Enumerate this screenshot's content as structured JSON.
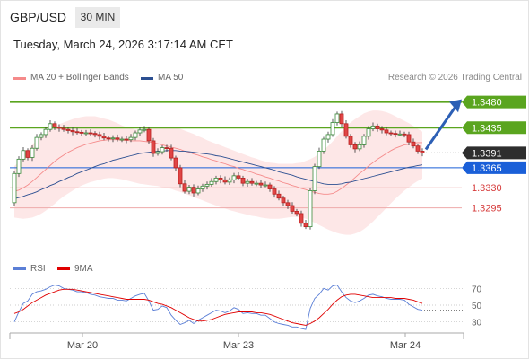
{
  "symbol": "GBP/USD",
  "timeframe": "30 MIN",
  "timestamp": "Tuesday, March 24, 2026 3:17:14 AM CET",
  "legend": {
    "ma20_label": "MA 20 + Bollinger Bands",
    "ma50_label": "MA 50",
    "rsi_label": "RSI",
    "rsi_ma_label": "9MA",
    "colors": {
      "ma20": "#f58a8a",
      "ma50": "#2c4f91",
      "rsi": "#5b7fd6",
      "rsi_ma": "#e00000"
    }
  },
  "credit": "Research © 2026 Trading Central",
  "levels": [
    {
      "value": "1.3480",
      "kind": "resistance",
      "color": "#5aa51f"
    },
    {
      "value": "1.3435",
      "kind": "resistance",
      "color": "#5aa51f"
    },
    {
      "value": "1.3391",
      "kind": "last_price",
      "color": "#2e2e2e"
    },
    {
      "value": "1.3365",
      "kind": "pivot",
      "color": "#1a5fd8"
    },
    {
      "value": "1.3330",
      "kind": "support",
      "color": "#d63b3b"
    },
    {
      "value": "1.3295",
      "kind": "support",
      "color": "#d63b3b"
    }
  ],
  "rsi_ticks": [
    "70",
    "50",
    "30"
  ],
  "date_ticks": [
    "Mar 20",
    "Mar 23",
    "Mar 24"
  ],
  "chart_data": {
    "type": "candlestick",
    "price_range": [
      1.3252,
      1.3495
    ],
    "rsi_range": [
      20,
      80
    ],
    "candles": [
      [
        1.3304,
        1.3355
      ],
      [
        1.3355,
        1.338
      ],
      [
        1.338,
        1.3395
      ],
      [
        1.3395,
        1.3383
      ],
      [
        1.3383,
        1.3399
      ],
      [
        1.3399,
        1.3418
      ],
      [
        1.3418,
        1.3423
      ],
      [
        1.3423,
        1.3432
      ],
      [
        1.3432,
        1.3442
      ],
      [
        1.3442,
        1.3436
      ],
      [
        1.3436,
        1.3434
      ],
      [
        1.3434,
        1.3432
      ],
      [
        1.3432,
        1.343
      ],
      [
        1.343,
        1.3428
      ],
      [
        1.3428,
        1.3427
      ],
      [
        1.3427,
        1.3426
      ],
      [
        1.3426,
        1.3426
      ],
      [
        1.3426,
        1.3425
      ],
      [
        1.3425,
        1.3423
      ],
      [
        1.3423,
        1.342
      ],
      [
        1.342,
        1.3417
      ],
      [
        1.3417,
        1.3416
      ],
      [
        1.3416,
        1.3417
      ],
      [
        1.3417,
        1.3415
      ],
      [
        1.3415,
        1.3415
      ],
      [
        1.3415,
        1.3414
      ],
      [
        1.3414,
        1.3418
      ],
      [
        1.3418,
        1.3426
      ],
      [
        1.3426,
        1.3431
      ],
      [
        1.3431,
        1.3432
      ],
      [
        1.3432,
        1.3412
      ],
      [
        1.3412,
        1.339
      ],
      [
        1.339,
        1.3393
      ],
      [
        1.3393,
        1.34
      ],
      [
        1.34,
        1.3399
      ],
      [
        1.3399,
        1.3382
      ],
      [
        1.3382,
        1.3365
      ],
      [
        1.3365,
        1.3337
      ],
      [
        1.3337,
        1.3324
      ],
      [
        1.3324,
        1.3331
      ],
      [
        1.3331,
        1.3321
      ],
      [
        1.3321,
        1.3328
      ],
      [
        1.3328,
        1.3333
      ],
      [
        1.3333,
        1.3336
      ],
      [
        1.3336,
        1.3341
      ],
      [
        1.3341,
        1.3347
      ],
      [
        1.3347,
        1.3344
      ],
      [
        1.3344,
        1.334
      ],
      [
        1.334,
        1.3344
      ],
      [
        1.3344,
        1.3351
      ],
      [
        1.3351,
        1.3347
      ],
      [
        1.3347,
        1.3338
      ],
      [
        1.3338,
        1.3341
      ],
      [
        1.3341,
        1.3338
      ],
      [
        1.3338,
        1.3338
      ],
      [
        1.3338,
        1.3335
      ],
      [
        1.3335,
        1.3335
      ],
      [
        1.3335,
        1.3328
      ],
      [
        1.3328,
        1.3319
      ],
      [
        1.3319,
        1.3312
      ],
      [
        1.3312,
        1.3304
      ],
      [
        1.3304,
        1.3299
      ],
      [
        1.3299,
        1.3289
      ],
      [
        1.3289,
        1.3285
      ],
      [
        1.3285,
        1.3268
      ],
      [
        1.3268,
        1.3262
      ],
      [
        1.3262,
        1.3325
      ],
      [
        1.3325,
        1.3367
      ],
      [
        1.3367,
        1.3394
      ],
      [
        1.3394,
        1.3415
      ],
      [
        1.3415,
        1.3423
      ],
      [
        1.3423,
        1.3444
      ],
      [
        1.3444,
        1.3459
      ],
      [
        1.3459,
        1.3442
      ],
      [
        1.3442,
        1.342
      ],
      [
        1.342,
        1.3405
      ],
      [
        1.3405,
        1.3398
      ],
      [
        1.3398,
        1.3405
      ],
      [
        1.3405,
        1.342
      ],
      [
        1.342,
        1.3433
      ],
      [
        1.3433,
        1.3438
      ],
      [
        1.3438,
        1.3433
      ],
      [
        1.3433,
        1.3431
      ],
      [
        1.3431,
        1.3426
      ],
      [
        1.3426,
        1.3425
      ],
      [
        1.3425,
        1.3424
      ],
      [
        1.3424,
        1.3424
      ],
      [
        1.3424,
        1.3423
      ],
      [
        1.3423,
        1.341
      ],
      [
        1.341,
        1.3403
      ],
      [
        1.3403,
        1.3394
      ],
      [
        1.3394,
        1.3391
      ]
    ],
    "ma20": [
      1.3324,
      1.3326,
      1.333,
      1.3335,
      1.3341,
      1.3348,
      1.3355,
      1.3362,
      1.3369,
      1.3376,
      1.3382,
      1.3387,
      1.3392,
      1.3396,
      1.34,
      1.3403,
      1.3406,
      1.3408,
      1.341,
      1.3412,
      1.3413,
      1.3414,
      1.3414,
      1.3414,
      1.3413,
      1.3413,
      1.3412,
      1.3412,
      1.3412,
      1.3411,
      1.341,
      1.3409,
      1.3407,
      1.3405,
      1.3403,
      1.3401,
      1.3399,
      1.3397,
      1.3394,
      1.3392,
      1.3389,
      1.3387,
      1.3384,
      1.3382,
      1.3379,
      1.3377,
      1.3374,
      1.3372,
      1.3369,
      1.3367,
      1.3364,
      1.3362,
      1.3359,
      1.3357,
      1.3354,
      1.3352,
      1.3349,
      1.3347,
      1.3344,
      1.3342,
      1.3339,
      1.3337,
      1.3334,
      1.3332,
      1.3329,
      1.3327,
      1.3324,
      1.3322,
      1.332,
      1.3319,
      1.3319,
      1.332,
      1.3324,
      1.3329,
      1.3335,
      1.3341,
      1.3348,
      1.3355,
      1.3361,
      1.3368,
      1.3374,
      1.338,
      1.3385,
      1.339,
      1.3395,
      1.3399,
      1.3402,
      1.3405,
      1.3406,
      1.3408,
      1.3409,
      1.3409
    ],
    "ma50": [
      1.3311,
      1.3313,
      1.3315,
      1.3318,
      1.332,
      1.3323,
      1.3327,
      1.333,
      1.3334,
      1.3337,
      1.3341,
      1.3344,
      1.3348,
      1.3351,
      1.3355,
      1.3358,
      1.3361,
      1.3364,
      1.3367,
      1.337,
      1.3372,
      1.3375,
      1.3378,
      1.338,
      1.3382,
      1.3384,
      1.3386,
      1.3388,
      1.339,
      1.3391,
      1.3392,
      1.3393,
      1.3394,
      1.3394,
      1.3395,
      1.3395,
      1.3395,
      1.3394,
      1.3394,
      1.3393,
      1.3392,
      1.3391,
      1.339,
      1.3389,
      1.3388,
      1.3386,
      1.3385,
      1.3383,
      1.3381,
      1.3379,
      1.3377,
      1.3375,
      1.3373,
      1.3371,
      1.3369,
      1.3367,
      1.3365,
      1.3363,
      1.3361,
      1.3358,
      1.3356,
      1.3354,
      1.3352,
      1.3349,
      1.3347,
      1.3345,
      1.3343,
      1.3341,
      1.3339,
      1.3337,
      1.3336,
      1.3336,
      1.3336,
      1.3337,
      1.3339,
      1.334,
      1.3342,
      1.3344,
      1.3346,
      1.3348,
      1.335,
      1.3352,
      1.3354,
      1.3356,
      1.3358,
      1.336,
      1.3362,
      1.3364,
      1.3366,
      1.3367,
      1.3369,
      1.337
    ],
    "bb_upper": [
      1.3368,
      1.3375,
      1.3385,
      1.3395,
      1.3405,
      1.3413,
      1.342,
      1.3426,
      1.3431,
      1.3436,
      1.3441,
      1.3444,
      1.3447,
      1.345,
      1.3452,
      1.3454,
      1.3455,
      1.3455,
      1.3455,
      1.3453,
      1.3451,
      1.3449,
      1.3446,
      1.3443,
      1.3439,
      1.3436,
      1.3434,
      1.3432,
      1.3432,
      1.3433,
      1.3434,
      1.3436,
      1.3437,
      1.3437,
      1.3437,
      1.3436,
      1.3435,
      1.3433,
      1.343,
      1.3427,
      1.3424,
      1.342,
      1.3417,
      1.3413,
      1.341,
      1.3407,
      1.3404,
      1.3401,
      1.3398,
      1.3395,
      1.3392,
      1.3389,
      1.3386,
      1.3383,
      1.3381,
      1.3378,
      1.3376,
      1.3374,
      1.3373,
      1.3372,
      1.3372,
      1.3372,
      1.3372,
      1.3373,
      1.3374,
      1.3377,
      1.338,
      1.3384,
      1.339,
      1.3396,
      1.3403,
      1.3411,
      1.342,
      1.3429,
      1.3437,
      1.3444,
      1.345,
      1.3455,
      1.346,
      1.3463,
      1.3465,
      1.3465,
      1.3464,
      1.3462,
      1.3459,
      1.3455,
      1.3451,
      1.3447,
      1.3443,
      1.3438,
      1.3433,
      1.3428
    ],
    "bb_lower": [
      1.3278,
      1.3277,
      1.3276,
      1.3277,
      1.3278,
      1.3281,
      1.3285,
      1.329,
      1.3296,
      1.3302,
      1.3309,
      1.3315,
      1.332,
      1.3325,
      1.333,
      1.3334,
      1.3337,
      1.334,
      1.3342,
      1.3344,
      1.3346,
      1.3347,
      1.3347,
      1.3346,
      1.3345,
      1.3343,
      1.3341,
      1.3339,
      1.3337,
      1.3336,
      1.3335,
      1.3334,
      1.3333,
      1.3331,
      1.333,
      1.3328,
      1.3325,
      1.3323,
      1.332,
      1.3317,
      1.3314,
      1.3311,
      1.3308,
      1.3305,
      1.3302,
      1.3299,
      1.3296,
      1.3294,
      1.3291,
      1.3289,
      1.3287,
      1.3285,
      1.3283,
      1.3281,
      1.328,
      1.3278,
      1.3277,
      1.3276,
      1.3276,
      1.3276,
      1.3277,
      1.3278,
      1.3279,
      1.3279,
      1.3278,
      1.3276,
      1.3273,
      1.3269,
      1.3265,
      1.3261,
      1.3257,
      1.3254,
      1.3251,
      1.3249,
      1.3248,
      1.3248,
      1.325,
      1.3253,
      1.3258,
      1.3264,
      1.3271,
      1.3279,
      1.3287,
      1.3295,
      1.3303,
      1.3311,
      1.3318,
      1.3325,
      1.3331,
      1.3337,
      1.3342,
      1.3346
    ],
    "rsi": [
      30,
      42,
      52,
      55,
      63,
      66,
      67,
      69,
      72,
      74,
      73,
      70,
      69,
      68,
      66,
      66,
      65,
      63,
      62,
      60,
      59,
      58,
      58,
      56,
      56,
      55,
      58,
      61,
      63,
      64,
      55,
      44,
      45,
      49,
      47,
      38,
      32,
      27,
      29,
      32,
      28,
      32,
      35,
      38,
      41,
      44,
      43,
      41,
      43,
      47,
      45,
      40,
      41,
      40,
      40,
      38,
      38,
      34,
      30,
      28,
      27,
      26,
      24,
      24,
      22,
      21,
      46,
      58,
      63,
      70,
      68,
      73,
      74,
      66,
      59,
      55,
      53,
      55,
      58,
      62,
      63,
      61,
      60,
      58,
      57,
      57,
      57,
      56,
      51,
      48,
      45,
      44
    ],
    "rsi_ma": [
      40,
      42,
      45,
      49,
      53,
      56,
      59,
      62,
      64,
      66,
      68,
      69,
      69,
      69,
      68,
      67,
      66,
      65,
      64,
      63,
      62,
      61,
      60,
      59,
      58,
      57,
      57,
      57,
      57,
      57,
      56,
      54,
      52,
      51,
      49,
      47,
      44,
      41,
      38,
      35,
      33,
      31,
      31,
      32,
      33,
      35,
      37,
      39,
      40,
      41,
      42,
      42,
      42,
      42,
      41,
      41,
      40,
      39,
      37,
      35,
      33,
      31,
      29,
      28,
      27,
      26,
      28,
      31,
      35,
      40,
      45,
      51,
      56,
      60,
      62,
      63,
      63,
      62,
      61,
      60,
      59,
      59,
      59,
      59,
      59,
      58,
      58,
      58,
      57,
      56,
      54,
      52
    ]
  }
}
